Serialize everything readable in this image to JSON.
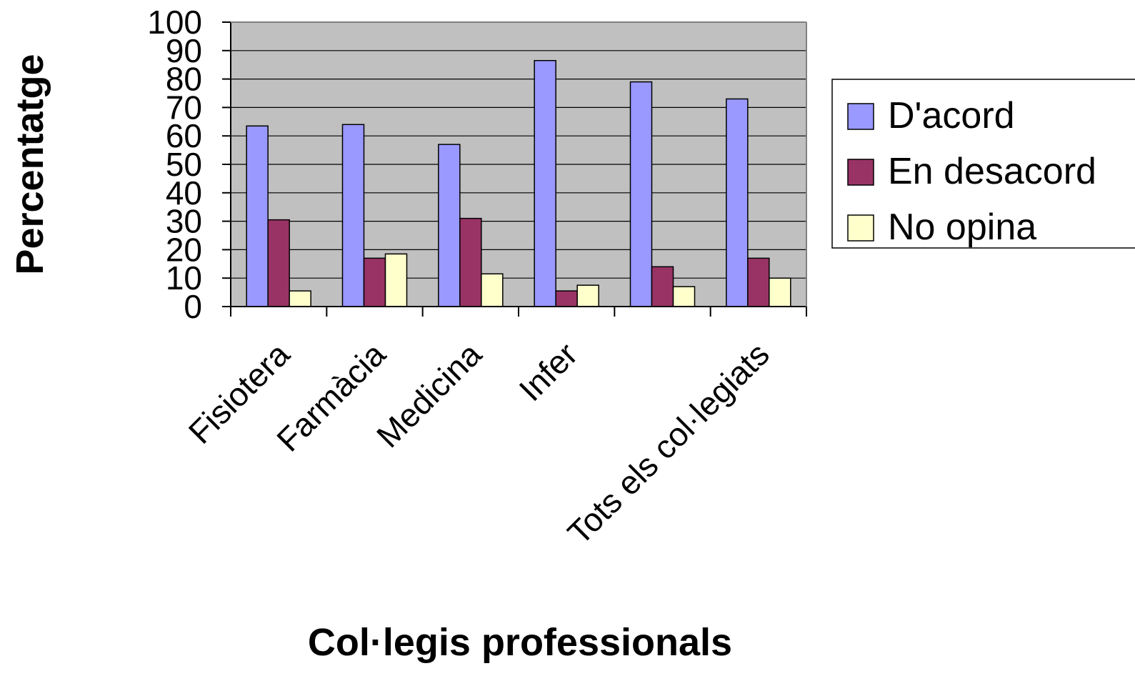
{
  "chart_data": {
    "type": "bar",
    "title": "",
    "xlabel": "Col·legis professionals",
    "ylabel": "Percentatge",
    "ylim": [
      0,
      100
    ],
    "yticks": [
      0,
      10,
      20,
      30,
      40,
      50,
      60,
      70,
      80,
      90,
      100
    ],
    "categories": [
      "Fisiotera",
      "Farmàcia",
      "Medicina",
      "Infer",
      "",
      "Tots els col·legiats"
    ],
    "series": [
      {
        "name": "D'acord",
        "color": "#9999FF",
        "values": [
          63.5,
          64,
          57,
          86.5,
          79,
          73
        ]
      },
      {
        "name": "En desacord",
        "color": "#993366",
        "values": [
          30.5,
          17,
          31,
          5.5,
          14,
          17
        ]
      },
      {
        "name": "No opina",
        "color": "#FFFFCC",
        "values": [
          5.5,
          18.5,
          11.5,
          7.5,
          7,
          10
        ]
      }
    ],
    "plot_background": "#C0C0C0",
    "grid": true,
    "legend_position": "right"
  }
}
